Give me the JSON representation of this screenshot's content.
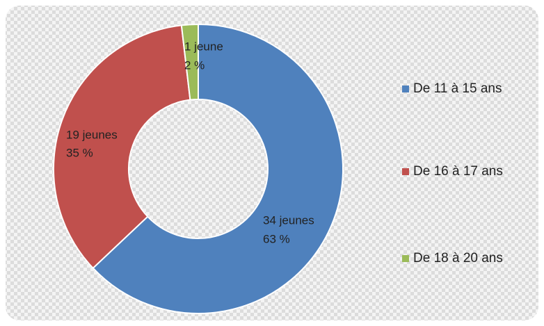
{
  "chart_data": {
    "type": "donut",
    "categories": [
      "De 11 à 15 ans",
      "De 16 à 17 ans",
      "De 18 à 20 ans"
    ],
    "values": [
      34,
      19,
      1
    ],
    "value_labels": [
      "34 jeunes",
      "19 jeunes",
      "1 jeune"
    ],
    "percents": [
      63,
      35,
      2
    ],
    "percent_labels": [
      "63 %",
      "35 %",
      "2 %"
    ],
    "colors": [
      "#4f81bd",
      "#c0504d",
      "#9bbb59"
    ]
  }
}
